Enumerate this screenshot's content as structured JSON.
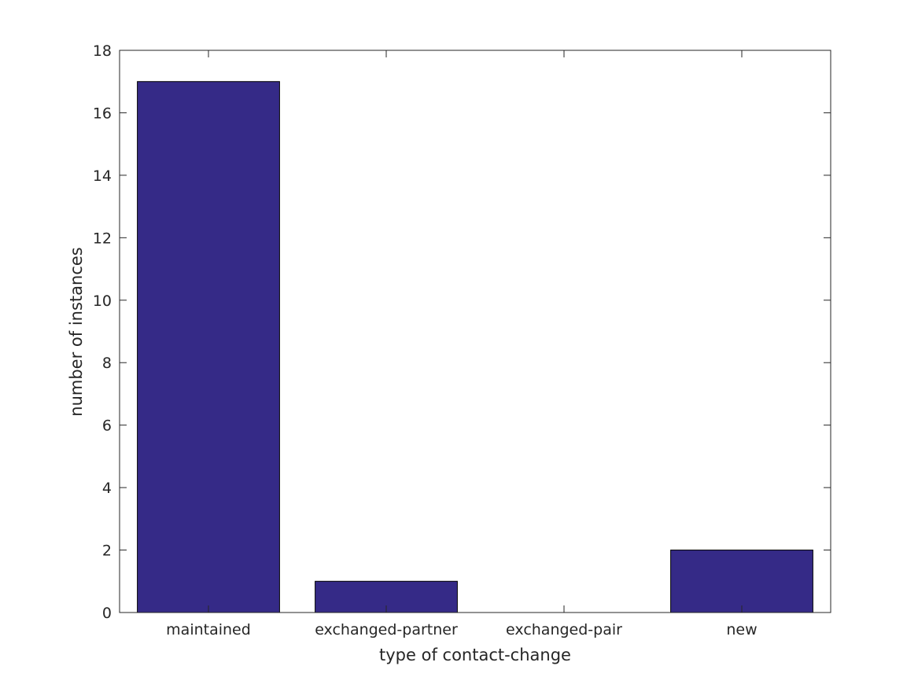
{
  "chart_data": {
    "type": "bar",
    "title": "",
    "xlabel": "type of contact-change",
    "ylabel": "number of instances",
    "categories": [
      "maintained",
      "exchanged-partner",
      "exchanged-pair",
      "new"
    ],
    "values": [
      17,
      1,
      0,
      2
    ],
    "ylim": [
      0,
      18
    ],
    "yticks": [
      0,
      2,
      4,
      6,
      8,
      10,
      12,
      14,
      16,
      18
    ],
    "grid": false,
    "legend": "none",
    "colors": {
      "bar_fill": "#352a87",
      "bar_edge": "#000000",
      "axis": "#262626",
      "background": "#ffffff"
    }
  }
}
